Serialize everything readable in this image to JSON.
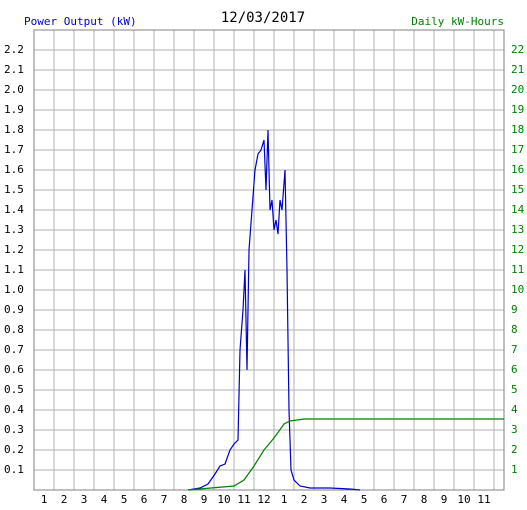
{
  "chart_data": {
    "type": "line",
    "title": "12/03/2017",
    "ylabel": "Power Output (kW)",
    "y2label": "Daily kW-Hours",
    "xlim": [
      0.5,
      24
    ],
    "ylim": [
      0,
      2.3
    ],
    "y2lim": [
      0,
      23
    ],
    "grid": true,
    "xticks": [
      1,
      2,
      3,
      4,
      5,
      6,
      7,
      8,
      9,
      10,
      11,
      12,
      {
        "value": 13,
        "label": "1"
      },
      {
        "value": 14,
        "label": "2"
      },
      {
        "value": 15,
        "label": "3"
      },
      {
        "value": 16,
        "label": "4"
      },
      {
        "value": 17,
        "label": "5"
      },
      {
        "value": 18,
        "label": "6"
      },
      {
        "value": 19,
        "label": "7"
      },
      {
        "value": 20,
        "label": "8"
      },
      {
        "value": 21,
        "label": "9"
      },
      {
        "value": 22,
        "label": "10"
      },
      {
        "value": 23,
        "label": "11"
      }
    ],
    "yticks": [
      0.1,
      0.2,
      0.3,
      0.4,
      0.5,
      0.6,
      0.7,
      0.8,
      0.9,
      {
        "value": 1,
        "label": "1.0"
      },
      1.1,
      1.2,
      1.3,
      1.4,
      1.5,
      1.6,
      1.7,
      1.8,
      1.9,
      {
        "value": 2,
        "label": "2.0"
      },
      2.1,
      2.2
    ],
    "y2ticks": [
      1,
      2,
      3,
      4,
      5,
      6,
      7,
      8,
      9,
      10,
      11,
      12,
      13,
      14,
      15,
      16,
      17,
      18,
      19,
      20,
      21,
      22
    ],
    "series": [
      {
        "name": "Power Output (kW)",
        "color": "#0000cc",
        "x": [
          8.2,
          8.8,
          9.2,
          9.55,
          9.8,
          10.05,
          10.3,
          10.5,
          10.7,
          10.8,
          10.95,
          11.05,
          11.15,
          11.25,
          11.4,
          11.55,
          11.7,
          11.85,
          12.0,
          12.1,
          12.2,
          12.3,
          12.4,
          12.5,
          12.6,
          12.7,
          12.8,
          12.9,
          13.05,
          13.15,
          13.25,
          13.35,
          13.5,
          13.8,
          14.3,
          15.3,
          16.3,
          16.8
        ],
        "values": [
          0,
          0.01,
          0.03,
          0.08,
          0.12,
          0.13,
          0.2,
          0.23,
          0.25,
          0.7,
          0.9,
          1.1,
          0.6,
          1.2,
          1.4,
          1.6,
          1.68,
          1.7,
          1.75,
          1.5,
          1.8,
          1.4,
          1.45,
          1.3,
          1.35,
          1.28,
          1.45,
          1.4,
          1.6,
          1.1,
          0.4,
          0.1,
          0.05,
          0.02,
          0.01,
          0.01,
          0.005,
          0
        ]
      },
      {
        "name": "Daily kW-Hours",
        "color": "#008000",
        "axis": "y2",
        "x": [
          8.2,
          10.5,
          11.0,
          11.5,
          12.0,
          12.5,
          13.0,
          13.3,
          14.0,
          24.0
        ],
        "values": [
          0,
          0.2,
          0.5,
          1.2,
          2.0,
          2.6,
          3.3,
          3.45,
          3.55,
          3.55
        ]
      }
    ]
  }
}
